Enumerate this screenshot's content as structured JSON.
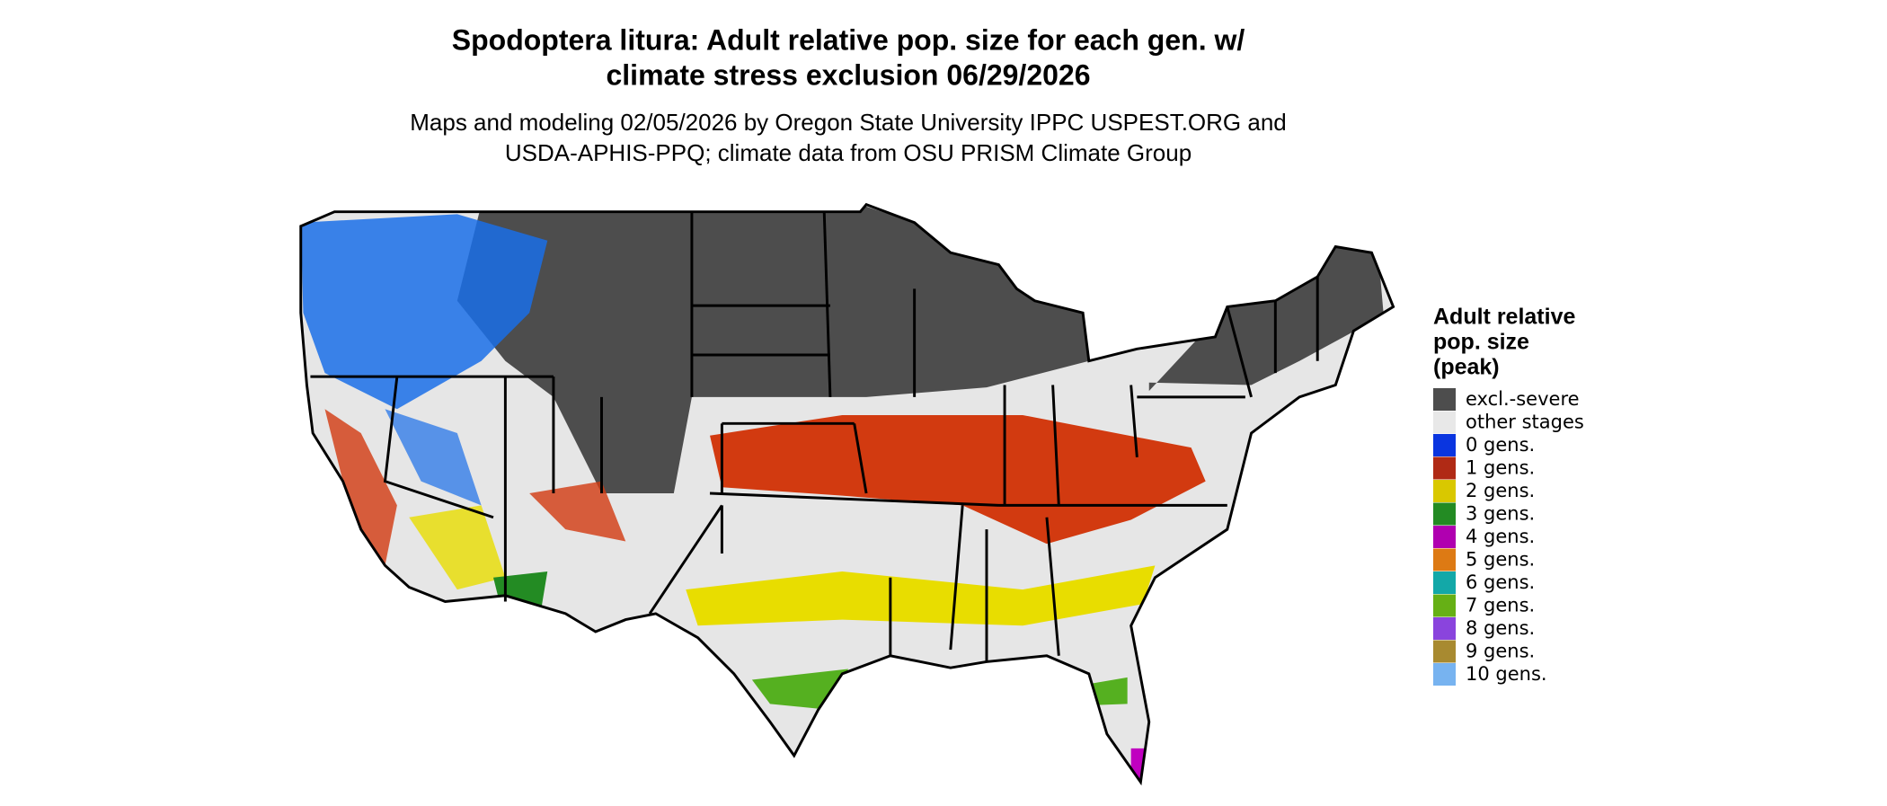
{
  "header": {
    "title": [
      "Spodoptera litura: Adult relative pop. size for each gen. w/",
      "climate stress exclusion 06/29/2026"
    ],
    "subtitle": [
      "Maps and modeling 02/05/2026 by Oregon State University IPPC USPEST.ORG and",
      "USDA-APHIS-PPQ; climate data from OSU PRISM Climate Group"
    ]
  },
  "legend": {
    "title": [
      "Adult relative",
      "pop. size",
      "(peak)"
    ],
    "items": [
      {
        "label": "excl.-severe",
        "color": "#4d4d4d"
      },
      {
        "label": "other stages",
        "color": "#e8e8e8"
      },
      {
        "label": "0 gens.",
        "color": "#0a35e0"
      },
      {
        "label": "1 gens.",
        "color": "#b02a15"
      },
      {
        "label": "2 gens.",
        "color": "#d9c800"
      },
      {
        "label": "3 gens.",
        "color": "#238b23"
      },
      {
        "label": "4 gens.",
        "color": "#b000b0"
      },
      {
        "label": "5 gens.",
        "color": "#dd7a14"
      },
      {
        "label": "6 gens.",
        "color": "#13a8a8"
      },
      {
        "label": "7 gens.",
        "color": "#66b015"
      },
      {
        "label": "8 gens.",
        "color": "#8a44dd"
      },
      {
        "label": "9 gens.",
        "color": "#a88a30"
      },
      {
        "label": "10 gens.",
        "color": "#77b3f0"
      }
    ]
  }
}
